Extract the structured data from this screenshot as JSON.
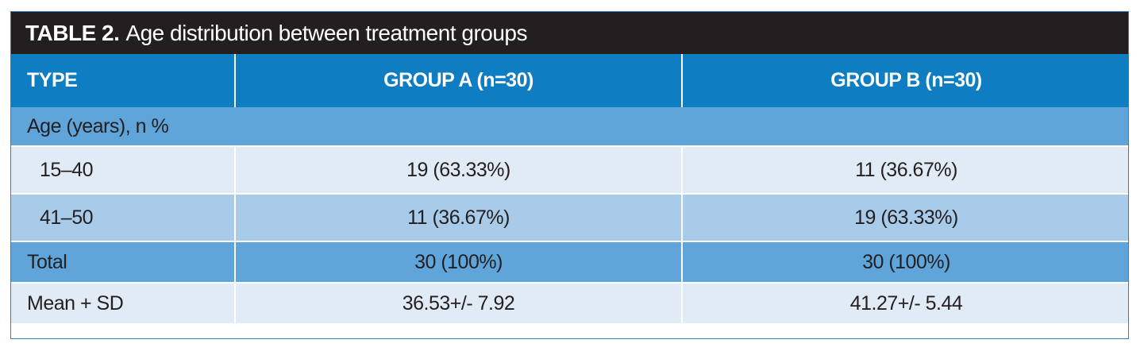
{
  "table": {
    "title_label": "TABLE 2.",
    "title_caption": "Age distribution between treatment groups",
    "headers": [
      "TYPE",
      "GROUP A (n=30)",
      "GROUP B (n=30)"
    ],
    "section": "Age (years), n %",
    "rows": [
      {
        "label": "15–40",
        "a": "19 (63.33%)",
        "b": "11 (36.67%)"
      },
      {
        "label": "41–50",
        "a": "11 (36.67%)",
        "b": "19 (63.33%)"
      },
      {
        "label": "Total",
        "a": "30 (100%)",
        "b": "30 (100%)"
      },
      {
        "label": "Mean + SD",
        "a": "36.53+/- 7.92",
        "b": "41.27+/- 5.44"
      }
    ]
  },
  "colors": {
    "title_bg": "#231f20",
    "header_bg": "#0f7dc2",
    "section_bg": "#5fa5d9",
    "light_row_bg": "#e1ebf6",
    "mid_row_bg": "#a9cbea"
  }
}
